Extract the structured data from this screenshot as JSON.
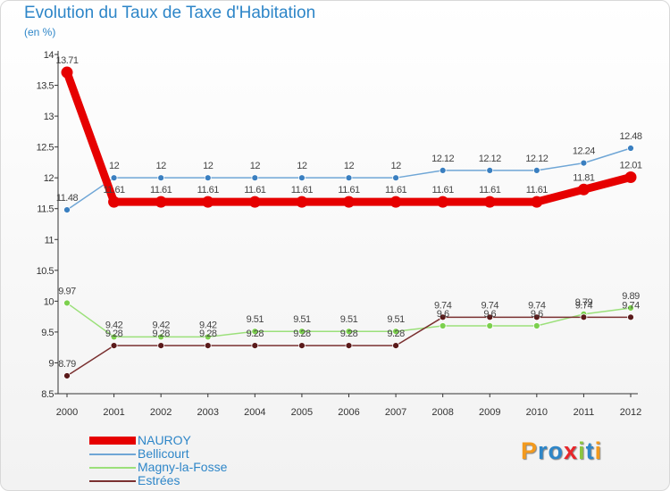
{
  "chart_data": {
    "type": "line",
    "title": "Evolution du Taux de Taxe d'Habitation",
    "unit": "(en %)",
    "xlabel": "",
    "ylabel": "",
    "x": [
      "2000",
      "2001",
      "2002",
      "2003",
      "2004",
      "2005",
      "2006",
      "2007",
      "2008",
      "2009",
      "2010",
      "2011",
      "2012"
    ],
    "ylim": [
      8.5,
      14
    ],
    "yticks": [
      "8.5",
      "9",
      "9.5",
      "10",
      "10.5",
      "11",
      "11.5",
      "12",
      "12.5",
      "13",
      "13.5",
      "14"
    ],
    "grid": false,
    "legend_position": "bottom-left",
    "series": [
      {
        "name": "NAUROY",
        "color": "#e60000",
        "values": [
          13.71,
          11.61,
          11.61,
          11.61,
          11.61,
          11.61,
          11.61,
          11.61,
          11.61,
          11.61,
          11.61,
          11.81,
          12.01
        ],
        "labels": [
          "13.71",
          "11.61",
          "11.61",
          "11.61",
          "11.61",
          "11.61",
          "11.61",
          "11.61",
          "11.61",
          "11.61",
          "11.61",
          "11.81",
          "12.01"
        ]
      },
      {
        "name": "Bellicourt",
        "color": "#6fa6d6",
        "values": [
          11.48,
          12,
          12,
          12,
          12,
          12,
          12,
          12,
          12.12,
          12.12,
          12.12,
          12.24,
          12.48
        ],
        "labels": [
          "11.48",
          "12",
          "12",
          "12",
          "12",
          "12",
          "12",
          "12",
          "12.12",
          "12.12",
          "12.12",
          "12.24",
          "12.48"
        ]
      },
      {
        "name": "Magny-la-Fosse",
        "color": "#9be07a",
        "values": [
          9.97,
          9.42,
          9.42,
          9.42,
          9.51,
          9.51,
          9.51,
          9.51,
          9.6,
          9.6,
          9.6,
          9.79,
          9.89
        ],
        "labels": [
          "9.97",
          "9.42",
          "9.42",
          "9.42",
          "9.51",
          "9.51",
          "9.51",
          "9.51",
          "9.6",
          "9.6",
          "9.6",
          "9.79",
          "9.89"
        ]
      },
      {
        "name": "Estrées",
        "color": "#7a3030",
        "values": [
          8.79,
          9.28,
          9.28,
          9.28,
          9.28,
          9.28,
          9.28,
          9.28,
          9.74,
          9.74,
          9.74,
          9.74,
          9.74
        ],
        "labels": [
          "8.79",
          "9.28",
          "9.28",
          "9.28",
          "9.28",
          "9.28",
          "9.28",
          "9.28",
          "9.74",
          "9.74",
          "9.74",
          "9.74",
          "9.74"
        ]
      }
    ]
  }
}
